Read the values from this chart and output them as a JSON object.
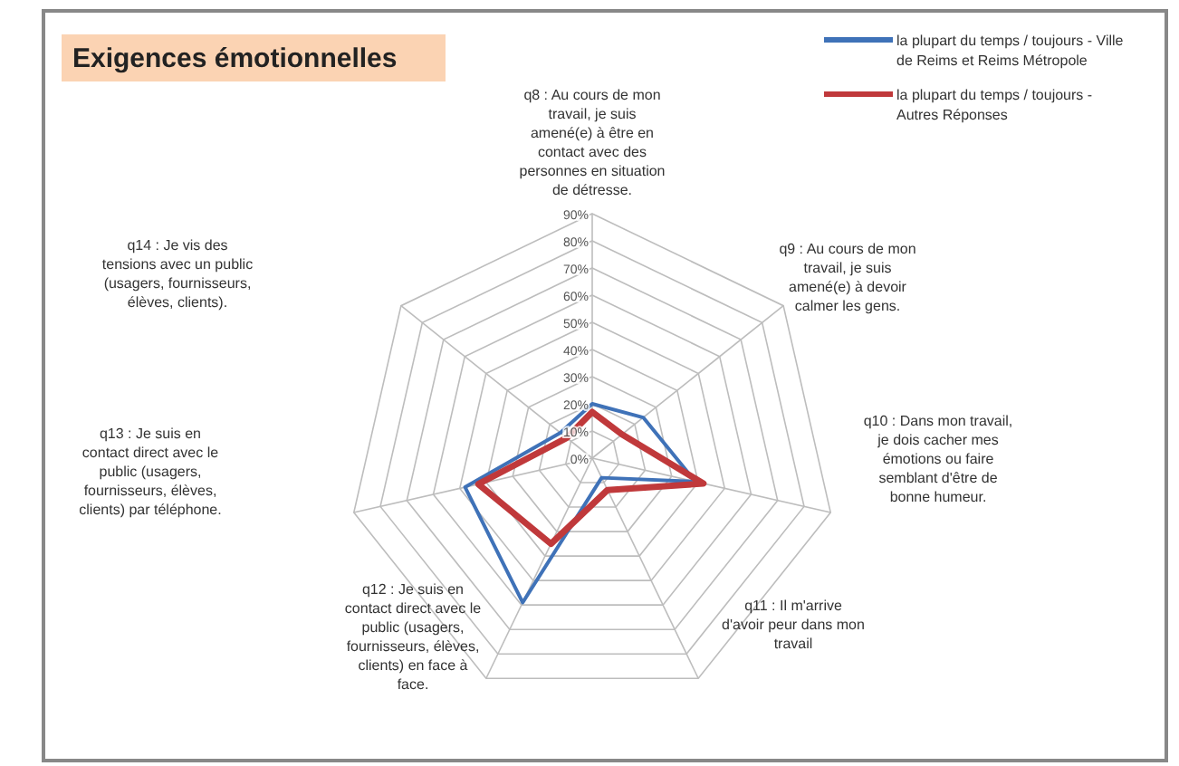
{
  "chart_data": {
    "type": "radar",
    "title": "Exigences émotionnelles",
    "categories": [
      "q8 : Au cours de mon travail, je suis amené(e) à être en contact avec des personnes en situation de détresse.",
      "q9 : Au cours de mon travail, je suis amené(e) à devoir calmer les gens.",
      "q10 : Dans mon travail, je dois cacher mes émotions ou faire semblant d'être de bonne humeur.",
      "q11 : Il m'arrive d'avoir peur dans mon travail",
      "q12 : Je suis en contact direct avec le public (usagers, fournisseurs, élèves, clients) en face à face.",
      "q13 : Je suis en contact direct avec le public (usagers, fournisseurs, élèves, clients) par téléphone.",
      "q14 : Je vis des tensions avec un public (usagers, fournisseurs, élèves, clients)."
    ],
    "series": [
      {
        "name": "la plupart du temps / toujours - Ville de Reims et Reims Métropole",
        "color": "#3f72b8",
        "values": [
          0.2,
          0.24,
          0.39,
          0.08,
          0.59,
          0.48,
          0.15
        ]
      },
      {
        "name": "la plupart du temps / toujours - Autres Réponses",
        "color": "#c0393b",
        "values": [
          0.17,
          0.14,
          0.42,
          0.13,
          0.35,
          0.43,
          0.12
        ]
      }
    ],
    "ylim": [
      0,
      0.9
    ],
    "yticks": [
      {
        "value": 0,
        "label": "0%"
      },
      {
        "value": 0.1,
        "label": "10%"
      },
      {
        "value": 0.2,
        "label": "20%"
      },
      {
        "value": 0.3,
        "label": "30%"
      },
      {
        "value": 0.4,
        "label": "40%"
      },
      {
        "value": 0.5,
        "label": "50%"
      },
      {
        "value": 0.6,
        "label": "60%"
      },
      {
        "value": 0.7,
        "label": "70%"
      },
      {
        "value": 0.8,
        "label": "80%"
      },
      {
        "value": 0.9,
        "label": "90%"
      }
    ],
    "grid": true,
    "legend": "top right"
  }
}
